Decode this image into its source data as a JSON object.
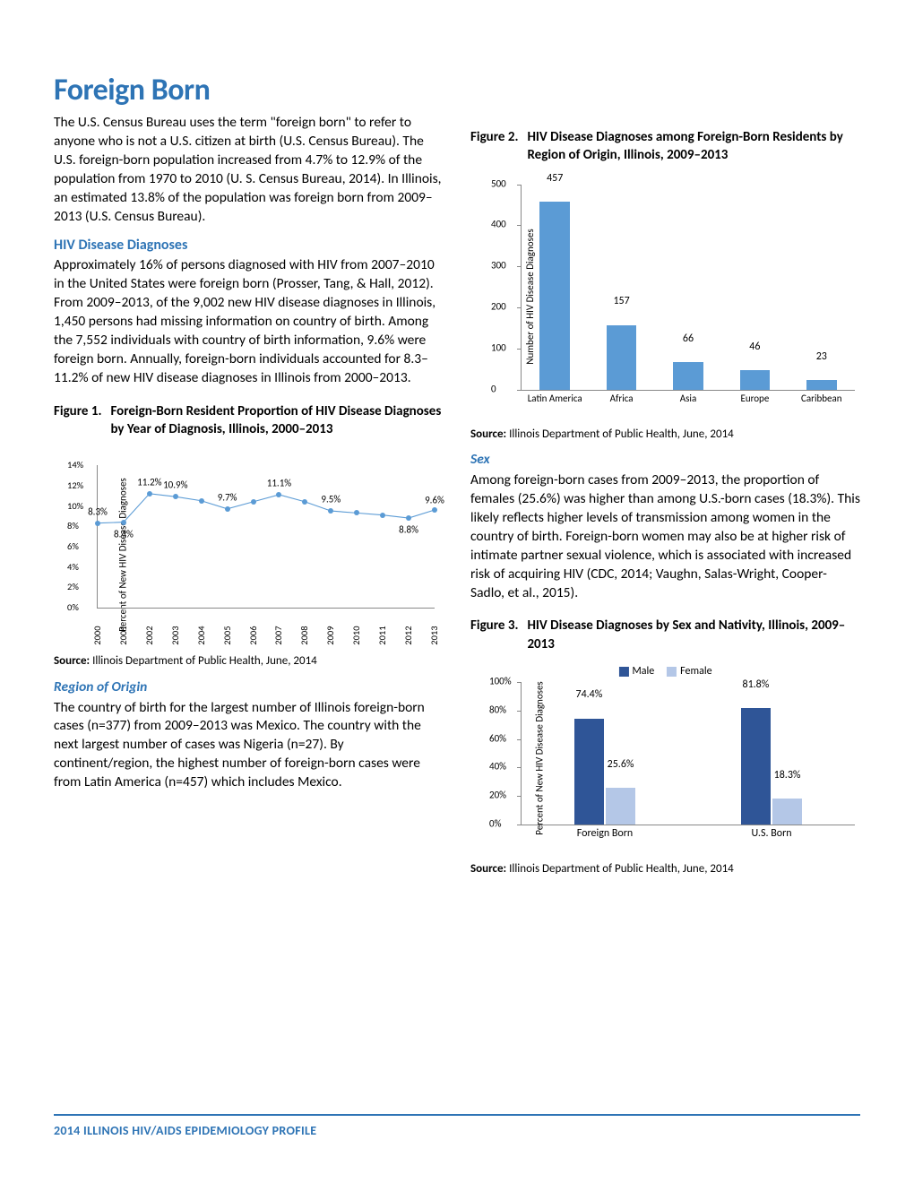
{
  "page": {
    "title": "Foreign Born",
    "footer": "2014 ILLINOIS HIV/AIDS EPIDEMIOLOGY PROFILE"
  },
  "intro": "The U.S. Census Bureau uses the term \"foreign born\" to refer to anyone who is not a U.S. citizen at birth (U.S. Census Bureau). The U.S. foreign-born population increased from 4.7% to 12.9% of the population from 1970 to 2010 (U. S. Census Bureau, 2014). In Illinois, an estimated 13.8% of the population was foreign born from 2009–2013 (U.S. Census Bureau).",
  "hiv_heading": "HIV Disease Diagnoses",
  "hiv_para": "Approximately 16% of persons diagnosed with HIV from 2007–2010 in the United States were foreign born (Prosser, Tang, & Hall, 2012). From 2009–2013, of the 9,002 new HIV disease diagnoses in Illinois, 1,450 persons had missing information on country of birth. Among the 7,552 individuals with country of birth information, 9.6% were foreign born. Annually, foreign-born individuals accounted for 8.3–11.2% of new HIV disease diagnoses in Illinois from 2000–2013.",
  "region_heading": "Region of Origin",
  "region_para": "The country of birth for the largest number of Illinois foreign-born cases (n=377) from 2009–2013 was Mexico. The country with the next largest number of cases was Nigeria (n=27). By continent/region, the highest number of foreign-born cases were from Latin America (n=457) which includes Mexico.",
  "sex_heading": "Sex",
  "sex_para": "Among foreign-born cases from 2009–2013, the proportion of females (25.6%) was higher than among U.S.-born cases (18.3%). This likely reflects higher levels of transmission among women in the country of birth. Foreign-born women may also be at higher risk of intimate partner sexual violence, which is associated with increased risk of acquiring HIV (CDC, 2014; Vaughn, Salas-Wright, Cooper-Sadlo, et al., 2015).",
  "source_label": "Source:",
  "source_text": " Illinois Department of Public Health, June, 2014",
  "figures": {
    "f1": {
      "num": "Figure 1.",
      "title": "Foreign-Born Resident Proportion of HIV Disease Diagnoses by Year of Diagnosis, Illinois, 2000–2013"
    },
    "f2": {
      "num": "Figure 2.",
      "title": "HIV Disease Diagnoses among Foreign-Born Residents by Region of Origin, Illinois, 2009–2013"
    },
    "f3": {
      "num": "Figure 3.",
      "title": "HIV Disease Diagnoses by Sex and Nativity, Illinois, 2009–2013"
    }
  },
  "chart1": {
    "type": "line",
    "ylabel": "Percent of New HIV Disease Diagnoses",
    "ylim": [
      0,
      14
    ],
    "ytick_step": 2,
    "ytick_suffix": "%",
    "line_color": "#5b9bd5",
    "marker_color": "#5b9bd5",
    "categories": [
      "2000",
      "2001",
      "2002",
      "2003",
      "2004",
      "2005",
      "2006",
      "2007",
      "2008",
      "2009",
      "2010",
      "2011",
      "2012",
      "2013"
    ],
    "values": [
      8.3,
      8.4,
      11.2,
      10.9,
      10.5,
      9.7,
      10.4,
      11.1,
      10.4,
      9.5,
      9.3,
      9.1,
      8.8,
      9.6
    ],
    "labels": {
      "0": "8.3%",
      "1": "8.4%",
      "2": "11.2%",
      "3": "10.9%",
      "5": "9.7%",
      "7": "11.1%",
      "9": "9.5%",
      "12": "8.8%",
      "13": "9.6%"
    },
    "label_y_offset": {
      "0": -12,
      "1": 14,
      "2": -12,
      "3": -12,
      "5": -12,
      "7": -12,
      "9": -12,
      "12": 14,
      "13": -10
    }
  },
  "chart2": {
    "type": "bar",
    "ylabel": "Number of HIV Disease Diagnoses",
    "ylim": [
      0,
      500
    ],
    "ytick_step": 100,
    "bar_color": "#5b9bd5",
    "bar_width": 0.45,
    "categories": [
      "Latin America",
      "Africa",
      "Asia",
      "Europe",
      "Caribbean"
    ],
    "values": [
      457,
      157,
      66,
      46,
      23
    ]
  },
  "chart3": {
    "type": "grouped-bar",
    "ylabel": "Percent of New HIV Disease Diagnoses",
    "ylim": [
      0,
      100
    ],
    "ytick_step": 20,
    "ytick_suffix": "%",
    "legend": [
      {
        "label": "Male",
        "color": "#2f5597"
      },
      {
        "label": "Female",
        "color": "#b4c7e7"
      }
    ],
    "groups": [
      "Foreign Born",
      "U.S. Born"
    ],
    "series": {
      "Male": {
        "color": "#2f5597",
        "values": [
          74.4,
          81.8
        ]
      },
      "Female": {
        "color": "#b4c7e7",
        "values": [
          25.6,
          18.3
        ]
      }
    },
    "bar_width": 0.18
  }
}
